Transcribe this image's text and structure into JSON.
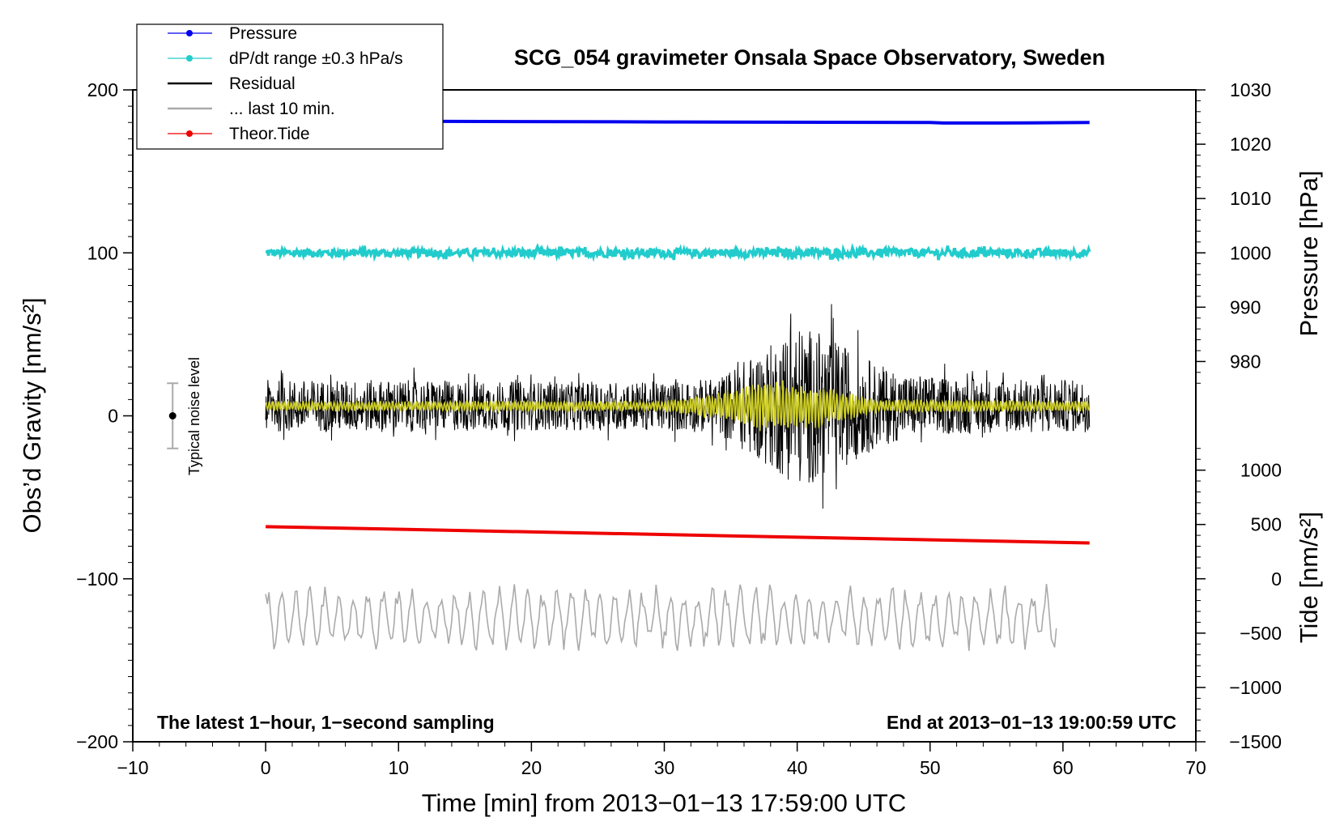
{
  "chart_data": {
    "type": "line",
    "title": "SCG_054 gravimeter Onsala Space Observatory, Sweden",
    "xlabel": "Time [min] from 2013−01−13 17:59:00 UTC",
    "ylabel_left": "Obs’d Gravity [nm/s²]",
    "ylabel_right_pressure": "Pressure [hPa]",
    "ylabel_right_tide": "Tide [nm/s²]",
    "xlim": [
      -10,
      70
    ],
    "ylim_left": [
      -200,
      200
    ],
    "x_ticks": [
      "−10",
      "0",
      "10",
      "20",
      "30",
      "40",
      "50",
      "60",
      "70"
    ],
    "x_tick_values": [
      -10,
      0,
      10,
      20,
      30,
      40,
      50,
      60,
      70
    ],
    "y_left_ticks": [
      "−200",
      "−100",
      "0",
      "100",
      "200"
    ],
    "y_left_tick_values": [
      -200,
      -100,
      0,
      100,
      200
    ],
    "pressure_ticks": [
      "980",
      "990",
      "1000",
      "1010",
      "1020",
      "1030"
    ],
    "pressure_tick_values": [
      980,
      990,
      1000,
      1010,
      1020,
      1030
    ],
    "tide_ticks": [
      "−1500",
      "−1000",
      "−500",
      "0",
      "500",
      "1000"
    ],
    "tide_tick_values": [
      -1500,
      -1000,
      -500,
      0,
      500,
      1000
    ],
    "bottom_left_note": "The latest 1−hour, 1−second sampling",
    "bottom_right_note": "End at 2013−01−13 19:00:59 UTC",
    "noise_label": "Typical noise level",
    "noise_bar": {
      "x": -7,
      "center": 0,
      "low": -20,
      "high": 20
    },
    "legend": [
      {
        "label": "Pressure",
        "color": "#0000ee",
        "marker": true
      },
      {
        "label": "dP/dt range ±0.3 hPa/s",
        "color": "#22cccc",
        "marker": true
      },
      {
        "label": "Residual",
        "color": "#000000",
        "marker": false
      },
      {
        "label": "... last 10 min.",
        "color": "#aaaaaa",
        "marker": false
      },
      {
        "label": "Theor.Tide",
        "color": "#ee0000",
        "marker": true
      }
    ],
    "series": [
      {
        "name": "Pressure",
        "axis": "pressure_hPa",
        "color": "#0000ee",
        "x": [
          0,
          30,
          31,
          50,
          51,
          55,
          62
        ],
        "y": [
          1024.3,
          1024.1,
          1024.1,
          1024.0,
          1023.9,
          1023.9,
          1024.0
        ]
      },
      {
        "name": "dP/dt range ±0.3 hPa/s",
        "axis": "gravity_nm_s2",
        "color": "#22cccc",
        "x": [
          0,
          62
        ],
        "y": [
          100,
          100
        ],
        "jitter": 2.5
      },
      {
        "name": "Residual",
        "axis": "gravity_nm_s2",
        "color": "#000000",
        "x": [
          0,
          62
        ],
        "baseline": 6,
        "envelope_x": [
          0,
          10,
          20,
          30,
          34,
          36,
          38,
          40,
          42,
          44,
          46,
          48,
          52,
          62
        ],
        "envelope_amp": [
          16,
          16,
          15,
          15,
          17,
          28,
          38,
          50,
          45,
          35,
          26,
          20,
          17,
          16
        ]
      },
      {
        "name": "Residual (filtered)",
        "axis": "gravity_nm_s2",
        "color": "#cccc22",
        "x": [
          0,
          62
        ],
        "baseline": 6,
        "envelope_x": [
          0,
          30,
          34,
          36,
          38,
          40,
          42,
          44,
          46,
          62
        ],
        "envelope_amp": [
          3,
          3,
          8,
          12,
          16,
          14,
          12,
          8,
          4,
          3
        ]
      },
      {
        "name": "... last 10 min.",
        "axis": "gravity_nm_s2",
        "color": "#aaaaaa",
        "x": [
          0,
          59.5
        ],
        "baseline": -124,
        "amp": 15
      },
      {
        "name": "Theor.Tide",
        "axis": "gravity_nm_s2",
        "color": "#ee0000",
        "x": [
          0,
          62
        ],
        "y": [
          -68,
          -78
        ]
      }
    ]
  }
}
